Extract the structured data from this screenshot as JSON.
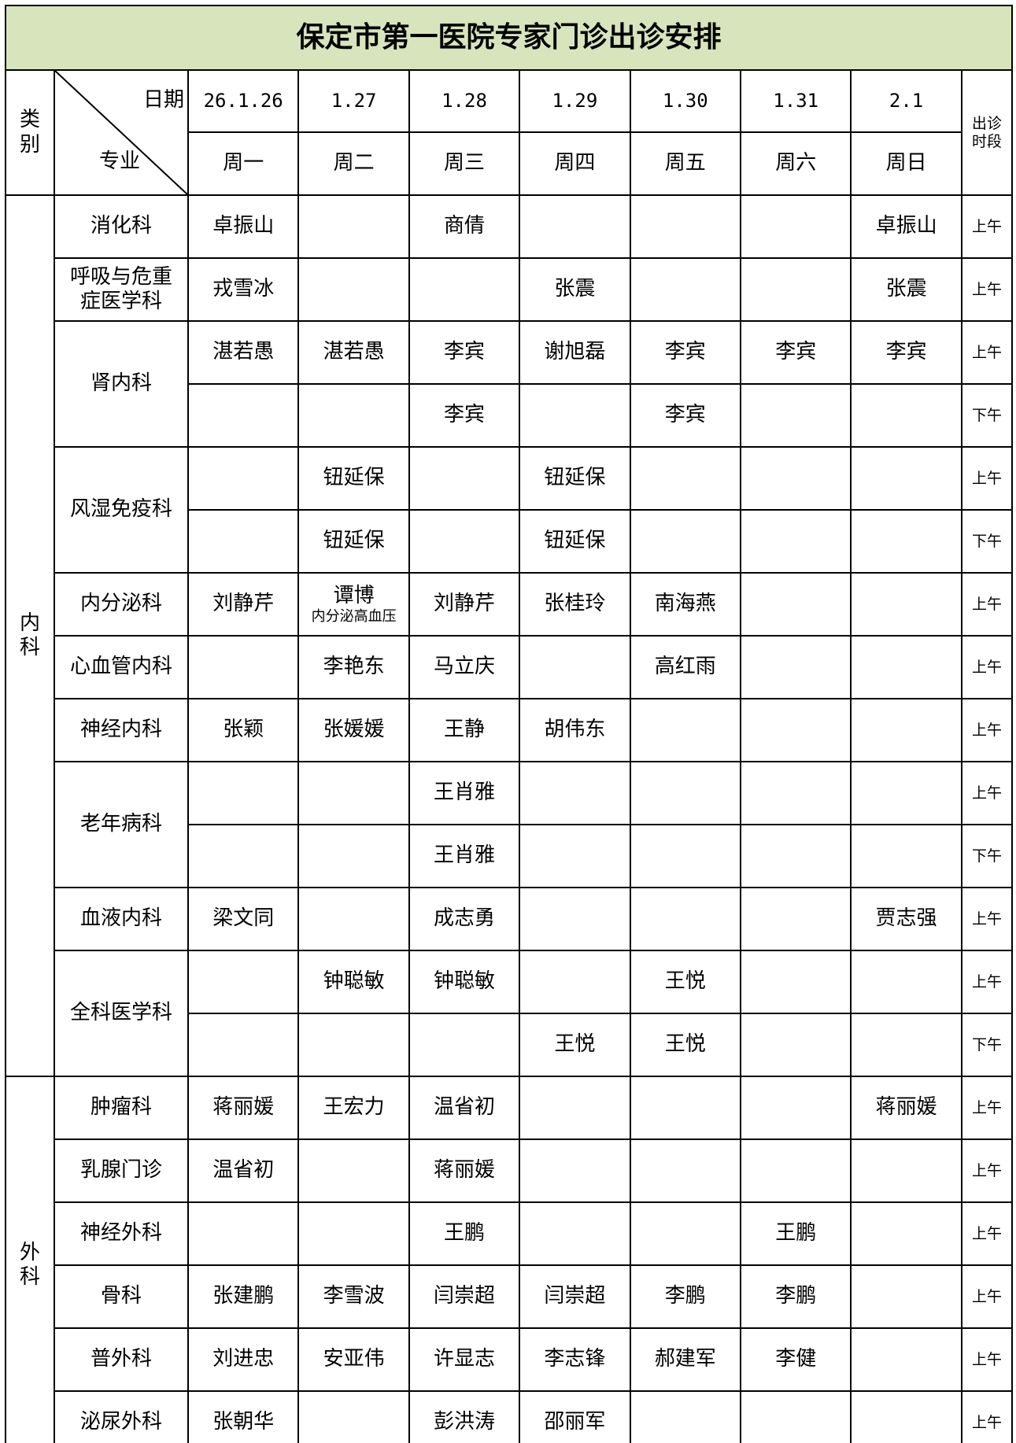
{
  "header": {
    "title": "保定市第一医院专家门诊出诊安排",
    "category_label": "类别",
    "date_label": "日期",
    "dept_label": "专业",
    "period_label": "出诊时段",
    "dates": [
      "26.1.26",
      "1.27",
      "1.28",
      "1.29",
      "1.30",
      "1.31",
      "2.1"
    ],
    "weekdays": [
      "周一",
      "周二",
      "周三",
      "周四",
      "周五",
      "周六",
      "周日"
    ]
  },
  "groups": [
    {
      "name": "内科",
      "departments": [
        {
          "name": "消化科",
          "rows": [
            {
              "doctors": [
                "卓振山",
                null,
                "商倩",
                null,
                null,
                null,
                "卓振山"
              ],
              "period": "上午"
            }
          ]
        },
        {
          "name": "呼吸与危重症医学科",
          "rows": [
            {
              "doctors": [
                "戎雪冰",
                null,
                null,
                "张震",
                null,
                null,
                "张震"
              ],
              "period": "上午"
            }
          ]
        },
        {
          "name": "肾内科",
          "rows": [
            {
              "doctors": [
                "湛若愚",
                "湛若愚",
                "李宾",
                "谢旭磊",
                "李宾",
                "李宾",
                "李宾"
              ],
              "period": "上午"
            },
            {
              "doctors": [
                null,
                null,
                "李宾",
                null,
                "李宾",
                null,
                null
              ],
              "period": "下午"
            }
          ]
        },
        {
          "name": "风湿免疫科",
          "rows": [
            {
              "doctors": [
                null,
                "钮延保",
                null,
                "钮延保",
                null,
                null,
                null
              ],
              "period": "上午"
            },
            {
              "doctors": [
                null,
                "钮延保",
                null,
                "钮延保",
                null,
                null,
                null
              ],
              "period": "下午"
            }
          ]
        },
        {
          "name": "内分泌科",
          "rows": [
            {
              "doctors": [
                "刘静芹",
                {
                  "name": "谭博",
                  "note": "内分泌高血压"
                },
                "刘静芹",
                "张桂玲",
                "南海燕",
                null,
                null
              ],
              "period": "上午"
            }
          ]
        },
        {
          "name": "心血管内科",
          "rows": [
            {
              "doctors": [
                null,
                "李艳东",
                "马立庆",
                null,
                "高红雨",
                null,
                null
              ],
              "period": "上午"
            }
          ]
        },
        {
          "name": "神经内科",
          "rows": [
            {
              "doctors": [
                "张颖",
                "张媛媛",
                "王静",
                "胡伟东",
                null,
                null,
                null
              ],
              "period": "上午"
            }
          ]
        },
        {
          "name": "老年病科",
          "rows": [
            {
              "doctors": [
                null,
                null,
                "王肖雅",
                null,
                null,
                null,
                null
              ],
              "period": "上午"
            },
            {
              "doctors": [
                null,
                null,
                "王肖雅",
                null,
                null,
                null,
                null
              ],
              "period": "下午"
            }
          ]
        },
        {
          "name": "血液内科",
          "rows": [
            {
              "doctors": [
                "梁文同",
                null,
                "成志勇",
                null,
                null,
                null,
                "贾志强"
              ],
              "period": "上午"
            }
          ]
        },
        {
          "name": "全科医学科",
          "rows": [
            {
              "doctors": [
                null,
                "钟聪敏",
                "钟聪敏",
                null,
                "王悦",
                null,
                null
              ],
              "period": "上午"
            },
            {
              "doctors": [
                null,
                null,
                null,
                "王悦",
                "王悦",
                null,
                null
              ],
              "period": "下午"
            }
          ]
        }
      ]
    },
    {
      "name": "外科",
      "departments": [
        {
          "name": "肿瘤科",
          "rows": [
            {
              "doctors": [
                "蒋丽媛",
                "王宏力",
                "温省初",
                null,
                null,
                null,
                "蒋丽媛"
              ],
              "period": "上午"
            }
          ]
        },
        {
          "name": "乳腺门诊",
          "rows": [
            {
              "doctors": [
                "温省初",
                null,
                "蒋丽媛",
                null,
                null,
                null,
                null
              ],
              "period": "上午"
            }
          ]
        },
        {
          "name": "神经外科",
          "rows": [
            {
              "doctors": [
                null,
                null,
                "王鹏",
                null,
                null,
                "王鹏",
                null
              ],
              "period": "上午"
            }
          ]
        },
        {
          "name": "骨科",
          "rows": [
            {
              "doctors": [
                "张建鹏",
                "李雪波",
                "闫崇超",
                "闫崇超",
                "李鹏",
                "李鹏",
                null
              ],
              "period": "上午"
            }
          ]
        },
        {
          "name": "普外科",
          "rows": [
            {
              "doctors": [
                "刘进忠",
                "安亚伟",
                "许显志",
                "李志锋",
                "郝建军",
                "李健",
                null
              ],
              "period": "上午"
            }
          ]
        },
        {
          "name": "泌尿外科",
          "rows": [
            {
              "doctors": [
                "张朝华",
                null,
                "彭洪涛",
                "邵丽军",
                null,
                null,
                null
              ],
              "period": "上午"
            }
          ]
        }
      ]
    }
  ]
}
